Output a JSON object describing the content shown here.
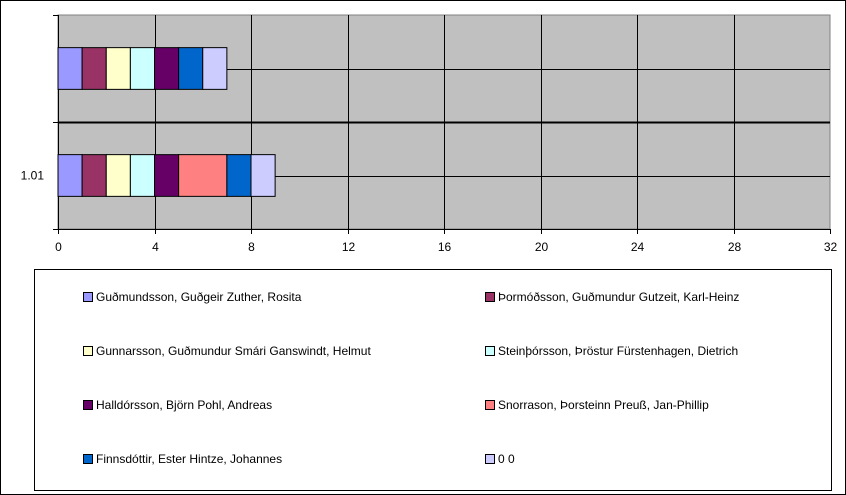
{
  "chart_data": {
    "type": "bar",
    "orientation": "horizontal",
    "stacked": true,
    "categories": [
      "",
      "1.01"
    ],
    "xlim": [
      0,
      32
    ],
    "xticks": [
      0,
      4,
      8,
      12,
      16,
      20,
      24,
      28,
      32
    ],
    "grid": true,
    "legend_position": "bottom",
    "plot_background": "#C0C0C0",
    "series": [
      {
        "name": "Guðmundsson, Guðgeir Zuther, Rosita",
        "color": "#9999FF",
        "values": [
          1,
          1
        ]
      },
      {
        "name": "Þormóðsson, Guðmundur Gutzeit, Karl-Heinz",
        "color": "#993366",
        "values": [
          1,
          1
        ]
      },
      {
        "name": "Gunnarsson, Guðmundur Smári Ganswindt, Helmut",
        "color": "#FFFFCC",
        "values": [
          1,
          1
        ]
      },
      {
        "name": "Steinþórsson, Þröstur  Fürstenhagen, Dietrich",
        "color": "#CCFFFF",
        "values": [
          1,
          1
        ]
      },
      {
        "name": "Halldórsson, Björn  Pohl, Andreas",
        "color": "#660066",
        "values": [
          1,
          1
        ]
      },
      {
        "name": "Snorrason, Þorsteinn  Preuß, Jan-Phillip",
        "color": "#FF8080",
        "values": [
          0,
          2
        ]
      },
      {
        "name": "Finnsdóttir, Ester Hintze, Johannes",
        "color": "#0066CC",
        "values": [
          1,
          1
        ]
      },
      {
        "name": "0 0",
        "color": "#CCCCFF",
        "values": [
          1,
          1
        ]
      }
    ]
  }
}
